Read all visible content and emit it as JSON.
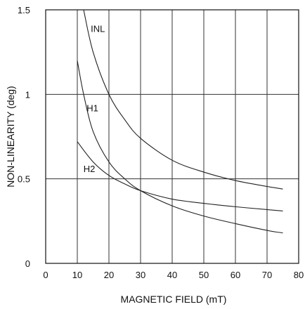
{
  "chart_data": {
    "type": "line",
    "xlabel": "MAGNETIC FIELD (mT)",
    "ylabel": "NON-LINEARITY (deg)",
    "xlim": [
      0,
      80
    ],
    "ylim": [
      0,
      1.5
    ],
    "x_ticks": [
      0,
      10,
      20,
      30,
      40,
      50,
      60,
      70,
      80
    ],
    "y_ticks": [
      0,
      0.5,
      1,
      1.5
    ],
    "x_tick_labels": [
      "0",
      "10",
      "20",
      "30",
      "40",
      "50",
      "60",
      "70",
      "80"
    ],
    "y_tick_labels": [
      "0",
      "0.5",
      "1",
      "1.5"
    ],
    "grid": true,
    "series": [
      {
        "name": "INL",
        "x": [
          12,
          15,
          20,
          25,
          30,
          40,
          50,
          60,
          70,
          75
        ],
        "y": [
          1.5,
          1.25,
          1.0,
          0.85,
          0.74,
          0.61,
          0.54,
          0.49,
          0.455,
          0.44
        ]
      },
      {
        "name": "H1",
        "x": [
          10,
          12,
          15,
          20,
          25,
          30,
          40,
          50,
          60,
          70,
          75
        ],
        "y": [
          1.2,
          1.0,
          0.78,
          0.6,
          0.5,
          0.43,
          0.34,
          0.28,
          0.235,
          0.195,
          0.18
        ]
      },
      {
        "name": "H2",
        "x": [
          10,
          15,
          20,
          25,
          30,
          40,
          50,
          60,
          70,
          75
        ],
        "y": [
          0.72,
          0.6,
          0.52,
          0.47,
          0.43,
          0.38,
          0.355,
          0.335,
          0.318,
          0.31
        ]
      }
    ]
  }
}
